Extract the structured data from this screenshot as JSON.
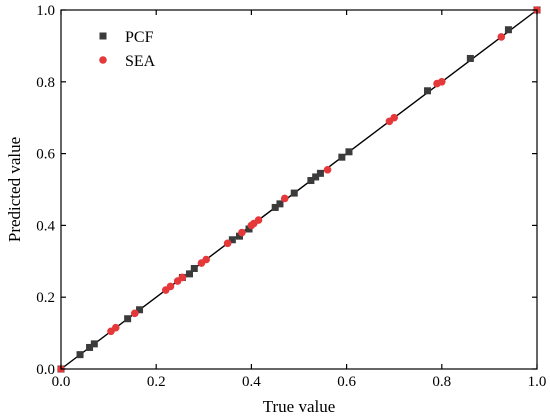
{
  "chart_data": {
    "type": "scatter",
    "title": "",
    "xlabel": "True value",
    "ylabel": "Predicted value",
    "xlim": [
      0.0,
      1.0
    ],
    "ylim": [
      0.0,
      1.0
    ],
    "x_ticks": [
      "0.0",
      "0.2",
      "0.4",
      "0.6",
      "0.8",
      "1.0"
    ],
    "y_ticks": [
      "0.0",
      "0.2",
      "0.4",
      "0.6",
      "0.8",
      "1.0"
    ],
    "grid": false,
    "legend_position": "top-left",
    "reference_line": {
      "from": [
        0.0,
        0.0
      ],
      "to": [
        1.0,
        1.0
      ],
      "color": "#000000"
    },
    "series": [
      {
        "name": "PCF",
        "marker": "square",
        "color": "#3b3b3b",
        "points": [
          [
            0.0,
            0.0
          ],
          [
            0.04,
            0.04
          ],
          [
            0.06,
            0.06
          ],
          [
            0.07,
            0.07
          ],
          [
            0.14,
            0.14
          ],
          [
            0.165,
            0.165
          ],
          [
            0.255,
            0.255
          ],
          [
            0.27,
            0.265
          ],
          [
            0.28,
            0.28
          ],
          [
            0.36,
            0.36
          ],
          [
            0.375,
            0.37
          ],
          [
            0.395,
            0.39
          ],
          [
            0.45,
            0.45
          ],
          [
            0.46,
            0.46
          ],
          [
            0.49,
            0.49
          ],
          [
            0.525,
            0.525
          ],
          [
            0.535,
            0.535
          ],
          [
            0.545,
            0.545
          ],
          [
            0.59,
            0.59
          ],
          [
            0.605,
            0.605
          ],
          [
            0.77,
            0.775
          ],
          [
            0.86,
            0.865
          ],
          [
            0.94,
            0.945
          ],
          [
            1.0,
            1.0
          ]
        ]
      },
      {
        "name": "SEA",
        "marker": "circle",
        "color": "#e5383b",
        "points": [
          [
            0.0,
            0.0
          ],
          [
            0.105,
            0.105
          ],
          [
            0.115,
            0.115
          ],
          [
            0.155,
            0.155
          ],
          [
            0.22,
            0.22
          ],
          [
            0.23,
            0.23
          ],
          [
            0.245,
            0.245
          ],
          [
            0.255,
            0.255
          ],
          [
            0.295,
            0.295
          ],
          [
            0.305,
            0.305
          ],
          [
            0.35,
            0.35
          ],
          [
            0.38,
            0.38
          ],
          [
            0.4,
            0.4
          ],
          [
            0.405,
            0.405
          ],
          [
            0.415,
            0.415
          ],
          [
            0.47,
            0.475
          ],
          [
            0.56,
            0.555
          ],
          [
            0.69,
            0.69
          ],
          [
            0.7,
            0.7
          ],
          [
            0.79,
            0.795
          ],
          [
            0.8,
            0.8
          ],
          [
            0.925,
            0.925
          ],
          [
            1.0,
            1.0
          ]
        ]
      }
    ]
  }
}
